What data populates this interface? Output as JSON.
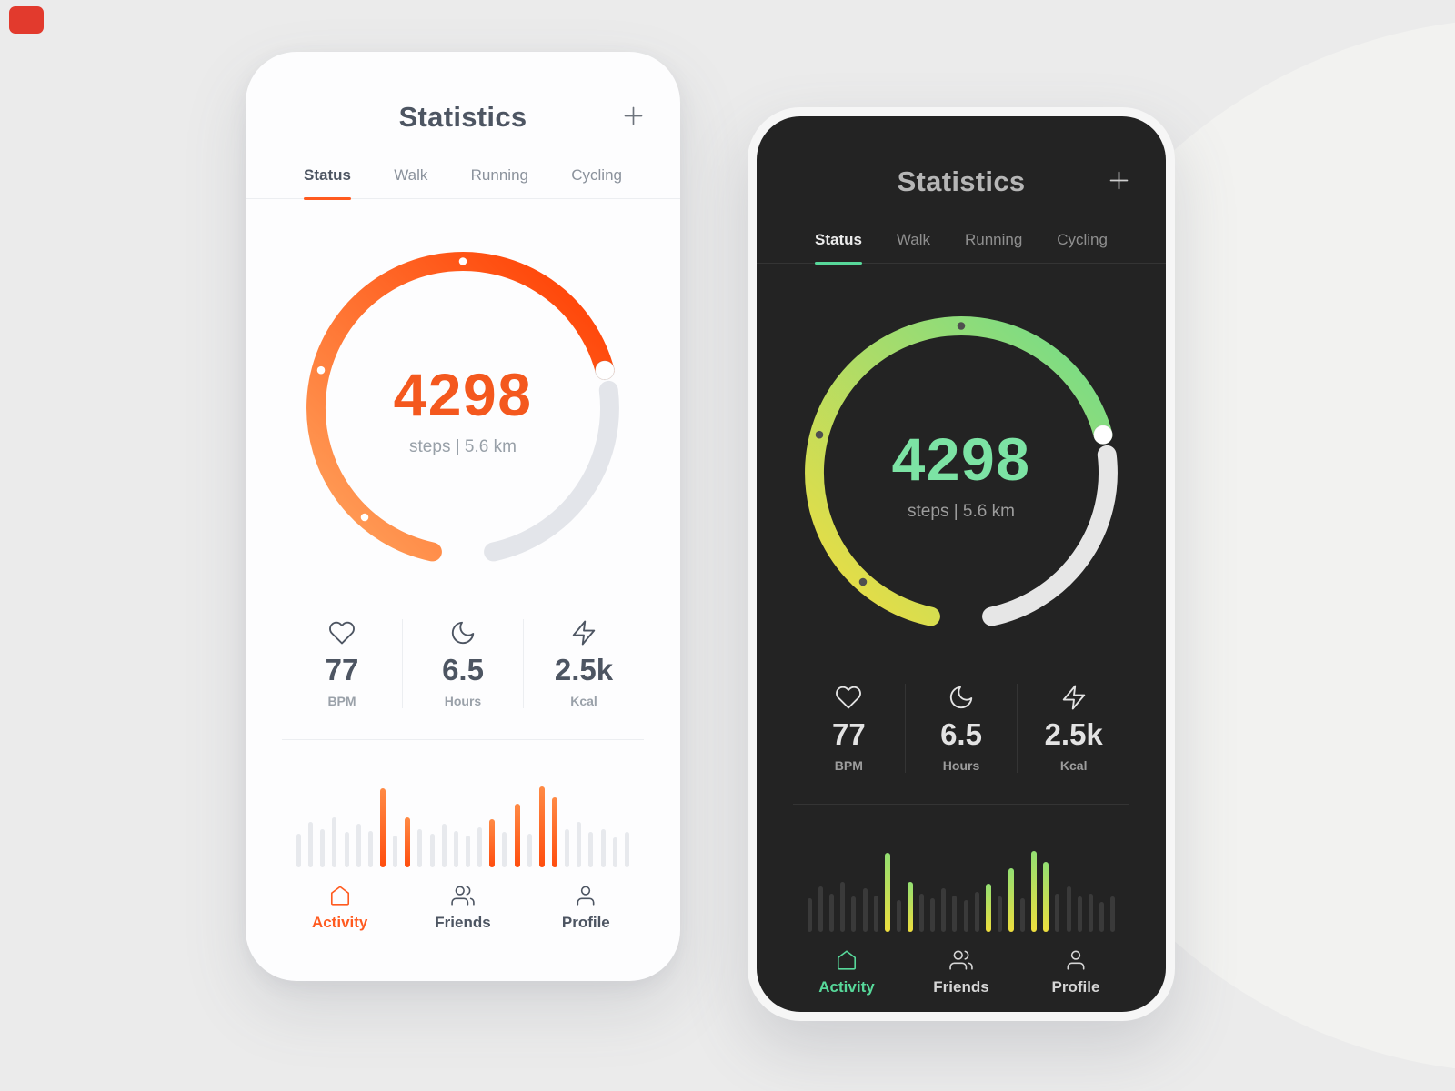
{
  "scene": {
    "background_color": "#ebebeb",
    "corner_marker_color": "#e23a2d"
  },
  "phones": [
    {
      "theme": "light",
      "accent": "#ff5a1f",
      "header": {
        "title": "Statistics",
        "add_icon": "plus-icon"
      },
      "tabs": [
        {
          "label": "Status",
          "active": true
        },
        {
          "label": "Walk",
          "active": false
        },
        {
          "label": "Running",
          "active": false
        },
        {
          "label": "Cycling",
          "active": false
        }
      ],
      "ring": {
        "steps": "4298",
        "subtitle": "steps | 5.6 km",
        "progress": 0.67,
        "gradient": [
          "#ffa45e",
          "#ff3c00"
        ]
      },
      "stats": [
        {
          "icon": "heart-icon",
          "value": "77",
          "label": "BPM"
        },
        {
          "icon": "moon-icon",
          "value": "6.5",
          "label": "Hours"
        },
        {
          "icon": "bolt-icon",
          "value": "2.5k",
          "label": "Kcal"
        }
      ],
      "nav": [
        {
          "icon": "home-icon",
          "label": "Activity",
          "active": true
        },
        {
          "icon": "friends-icon",
          "label": "Friends",
          "active": false
        },
        {
          "icon": "profile-icon",
          "label": "Profile",
          "active": false
        }
      ]
    },
    {
      "theme": "dark",
      "accent": "#57d89a",
      "header": {
        "title": "Statistics",
        "add_icon": "plus-icon"
      },
      "tabs": [
        {
          "label": "Status",
          "active": true
        },
        {
          "label": "Walk",
          "active": false
        },
        {
          "label": "Running",
          "active": false
        },
        {
          "label": "Cycling",
          "active": false
        }
      ],
      "ring": {
        "steps": "4298",
        "subtitle": "steps | 5.6 km",
        "progress": 0.67,
        "gradient": [
          "#f2dd3f",
          "#6fdc8c"
        ]
      },
      "stats": [
        {
          "icon": "heart-icon",
          "value": "77",
          "label": "BPM"
        },
        {
          "icon": "moon-icon",
          "value": "6.5",
          "label": "Hours"
        },
        {
          "icon": "bolt-icon",
          "value": "2.5k",
          "label": "Kcal"
        }
      ],
      "nav": [
        {
          "icon": "home-icon",
          "label": "Activity",
          "active": true
        },
        {
          "icon": "friends-icon",
          "label": "Friends",
          "active": false
        },
        {
          "icon": "profile-icon",
          "label": "Profile",
          "active": false
        }
      ]
    }
  ],
  "chart_data": {
    "type": "bar",
    "values": [
      40,
      54,
      46,
      60,
      42,
      52,
      44,
      95,
      38,
      60,
      46,
      40,
      52,
      44,
      38,
      48,
      58,
      42,
      76,
      40,
      97,
      84,
      46,
      54,
      42,
      46,
      36,
      42
    ],
    "highlighted_indices": [
      7,
      9,
      16,
      18,
      20,
      21
    ],
    "ylim": [
      0,
      100
    ],
    "x_labels": [],
    "legend": null
  }
}
